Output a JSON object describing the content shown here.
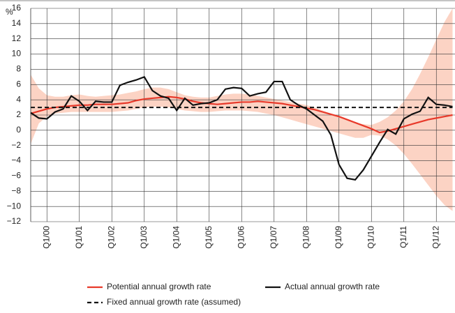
{
  "chart_data": {
    "type": "line",
    "y_unit": "%",
    "categories": [
      null,
      null,
      "Q1/00",
      null,
      null,
      null,
      "Q1/01",
      null,
      null,
      null,
      "Q1/02",
      null,
      null,
      null,
      "Q1/03",
      null,
      null,
      null,
      "Q1/04",
      null,
      null,
      null,
      "Q1/05",
      null,
      null,
      null,
      "Q1/06",
      null,
      null,
      null,
      "Q1/07",
      null,
      null,
      null,
      "Q1/08",
      null,
      null,
      null,
      "Q1/09",
      null,
      null,
      null,
      "Q1/10",
      null,
      null,
      null,
      "Q1/11",
      null,
      null,
      null,
      "Q1/12",
      null,
      null
    ],
    "band": {
      "color": "#fcd3c4",
      "upper": [
        7.3,
        5.5,
        4.6,
        4.4,
        4.4,
        4.6,
        4.7,
        4.5,
        4.4,
        4.5,
        4.6,
        4.7,
        4.9,
        5.1,
        5.4,
        5.6,
        5.6,
        5.4,
        5.0,
        4.6,
        4.4,
        4.3,
        4.3,
        4.5,
        4.7,
        4.8,
        4.8,
        4.7,
        4.5,
        4.3,
        4.1,
        3.9,
        3.7,
        3.5,
        3.3,
        3.0,
        2.6,
        2.2,
        1.8,
        1.4,
        1.0,
        0.8,
        0.7,
        1.1,
        1.7,
        2.6,
        3.8,
        5.4,
        7.4,
        9.6,
        11.9,
        14.2,
        16
      ],
      "lower": [
        -1.8,
        0.9,
        1.8,
        2.2,
        2.3,
        2.4,
        2.4,
        2.4,
        2.4,
        2.4,
        2.4,
        2.5,
        2.6,
        2.8,
        3.0,
        3.1,
        3.1,
        3.0,
        2.8,
        2.6,
        2.5,
        2.4,
        2.4,
        2.5,
        2.6,
        2.6,
        2.6,
        2.5,
        2.4,
        2.2,
        2.0,
        1.7,
        1.4,
        1.1,
        0.8,
        0.5,
        0.2,
        -0.1,
        -0.4,
        -0.7,
        -1.0,
        -1.0,
        -0.6,
        -0.7,
        -1.2,
        -2.0,
        -3.1,
        -4.4,
        -5.8,
        -7.2,
        -8.6,
        -9.8,
        -10.6
      ]
    },
    "series": [
      {
        "name": "Potential annual growth rate",
        "color": "#e8392a",
        "dash": false,
        "values": [
          2.2,
          2.5,
          2.8,
          3.0,
          3.1,
          3.2,
          3.3,
          3.3,
          3.4,
          3.4,
          3.4,
          3.5,
          3.6,
          3.9,
          4.1,
          4.2,
          4.3,
          4.4,
          4.3,
          4.1,
          3.8,
          3.6,
          3.5,
          3.4,
          3.5,
          3.6,
          3.7,
          3.7,
          3.8,
          3.7,
          3.6,
          3.5,
          3.3,
          3.1,
          2.9,
          2.7,
          2.4,
          2.1,
          1.8,
          1.4,
          1.0,
          0.6,
          0.2,
          -0.3,
          -0.1,
          0.2,
          0.5,
          0.8,
          1.1,
          1.4,
          1.6,
          1.8,
          2.0
        ]
      },
      {
        "name": "Actual annual growth rate",
        "color": "#111111",
        "dash": false,
        "values": [
          2.3,
          1.6,
          1.5,
          2.4,
          2.8,
          4.5,
          3.8,
          2.6,
          3.8,
          3.7,
          3.7,
          5.9,
          6.3,
          6.6,
          7.0,
          5.2,
          4.5,
          4.2,
          2.6,
          4.2,
          3.3,
          3.5,
          3.6,
          4.0,
          5.4,
          5.6,
          5.5,
          4.5,
          4.8,
          5.0,
          6.4,
          6.4,
          4.0,
          3.3,
          2.8,
          2.0,
          1.2,
          -0.6,
          -4.5,
          -6.3,
          -6.5,
          -5.2,
          -3.4,
          -1.6,
          0.1,
          -0.5,
          1.5,
          2.1,
          2.5,
          4.3,
          3.4,
          3.3,
          3.1
        ]
      },
      {
        "name": "Fixed annual growth rate (assumed)",
        "color": "#111111",
        "dash": true,
        "values": [
          3,
          3,
          3,
          3,
          3,
          3,
          3,
          3,
          3,
          3,
          3,
          3,
          3,
          3,
          3,
          3,
          3,
          3,
          3,
          3,
          3,
          3,
          3,
          3,
          3,
          3,
          3,
          3,
          3,
          3,
          3,
          3,
          3,
          3,
          3,
          3,
          3,
          3,
          3,
          3,
          3,
          3,
          3,
          3,
          3,
          3,
          3,
          3,
          3,
          3,
          3,
          3,
          3
        ]
      }
    ],
    "ylim": [
      -12,
      16
    ],
    "yticks": [
      {
        "value": -12,
        "label": "−12"
      },
      {
        "value": -10,
        "label": "−10"
      },
      {
        "value": -8,
        "label": "−8"
      },
      {
        "value": -6,
        "label": "−6"
      },
      {
        "value": -4,
        "label": "−4"
      },
      {
        "value": -2,
        "label": "−2"
      },
      0,
      2,
      4,
      6,
      8,
      10,
      12,
      14,
      16
    ],
    "grid": true
  }
}
